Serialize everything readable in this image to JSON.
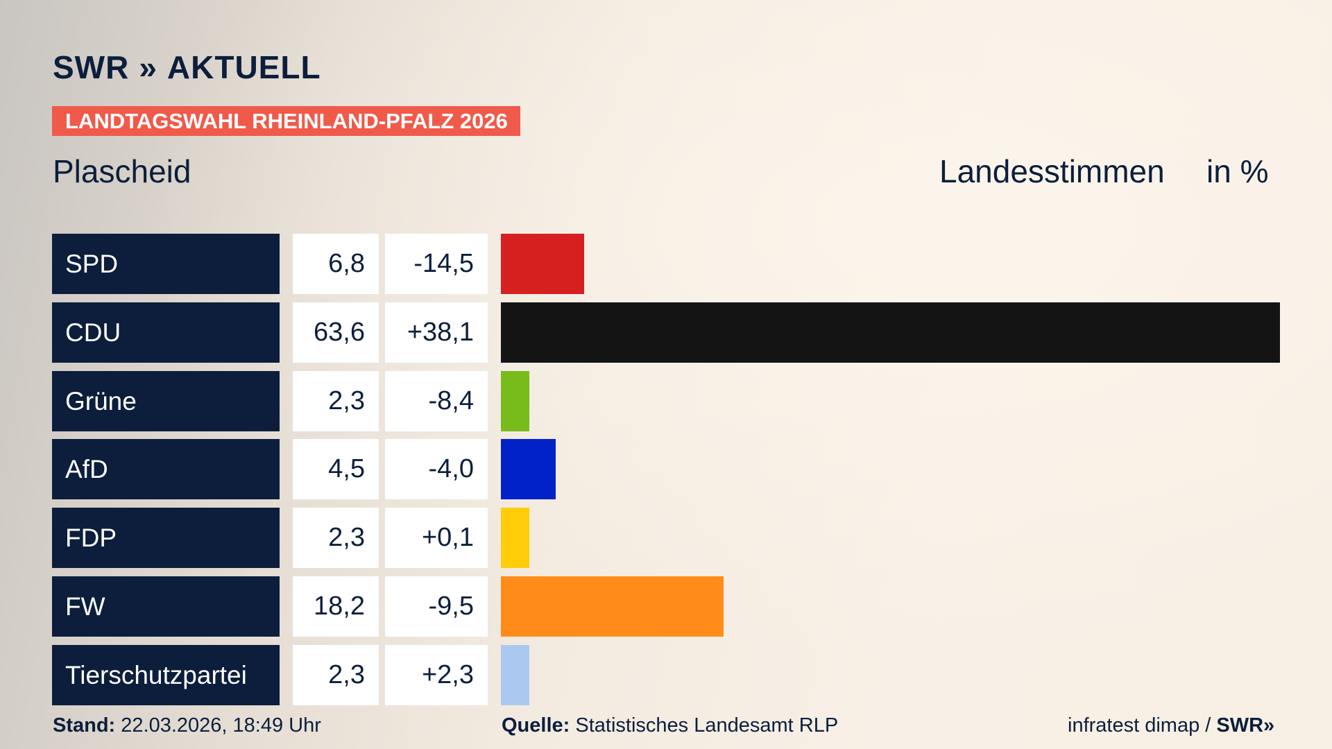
{
  "header": {
    "logo": "SWR » AKTUELL",
    "logo_left": "SWR",
    "logo_right": "AKTUELL",
    "banner": "LANDTAGSWAHL RHEINLAND-PFALZ 2026",
    "place": "Plascheid",
    "title": "Landesstimmen",
    "unit": "in %"
  },
  "chart_data": {
    "type": "bar",
    "title": "Landesstimmen",
    "unit": "in %",
    "categories": [
      "SPD",
      "CDU",
      "Grüne",
      "AfD",
      "FDP",
      "FW",
      "Tierschutzpartei"
    ],
    "values": [
      6.8,
      63.6,
      2.3,
      4.5,
      2.3,
      18.2,
      2.3
    ],
    "labels": [
      "6,8",
      "63,6",
      "2,3",
      "4,5",
      "2,3",
      "18,2",
      "2,3"
    ],
    "diffs": [
      "-14,5",
      "+38,1",
      "-8,4",
      "-4,0",
      "+0,1",
      "-9,5",
      "+2,3"
    ],
    "colors": [
      "#d62020",
      "#141414",
      "#78bc1b",
      "#0022c8",
      "#ffcd0a",
      "#ff8c19",
      "#abc9f0"
    ],
    "xlim": [
      0,
      63.6
    ]
  },
  "footer": {
    "stand_label": "Stand:",
    "stand": "22.03.2026, 18:49 Uhr",
    "source_label": "Quelle:",
    "source": "Statistisches Landesamt RLP",
    "credit": "infratest dimap /",
    "credit_logo": "SWR»"
  }
}
